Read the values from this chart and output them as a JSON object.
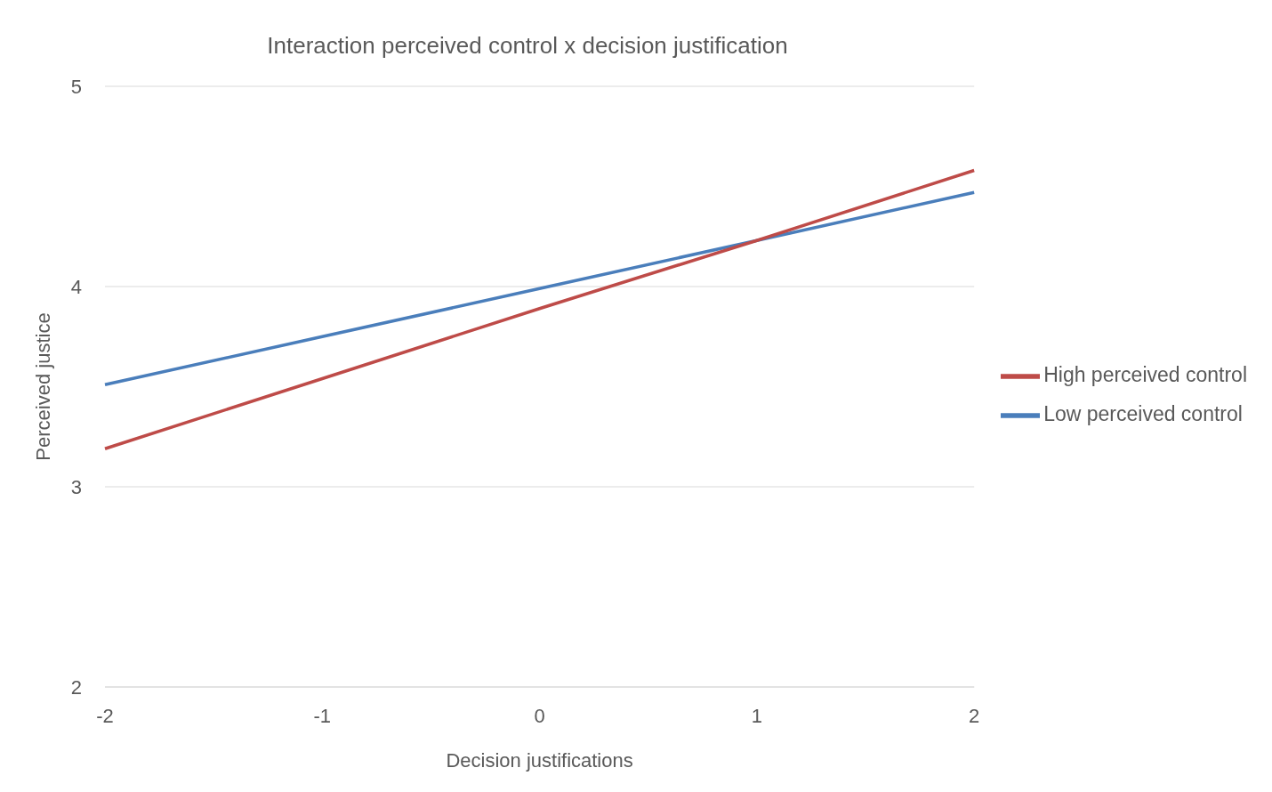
{
  "chart_data": {
    "type": "line",
    "title": "Interaction perceived control x decision justification",
    "xlabel": "Decision justifications",
    "ylabel": "Perceived justice",
    "categories": [
      "-2",
      "-1",
      "0",
      "1",
      "2"
    ],
    "series": [
      {
        "name": "Low perceived control",
        "color": "#4a7ebb",
        "values": [
          3.51,
          3.75,
          3.99,
          4.23,
          4.47
        ]
      },
      {
        "name": "High perceived control",
        "color": "#be4b48",
        "values": [
          3.19,
          3.54,
          3.89,
          4.23,
          4.58
        ]
      }
    ],
    "ylim": [
      2,
      5
    ],
    "yticks": [
      2,
      3,
      4,
      5
    ],
    "grid": "y",
    "legend": "right",
    "marker": "none",
    "line_style": "solid"
  }
}
